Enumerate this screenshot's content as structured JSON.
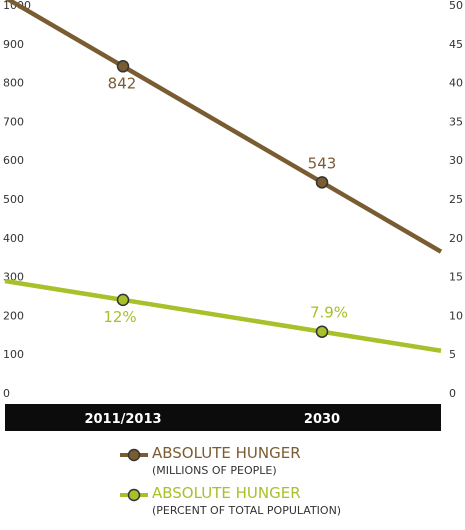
{
  "chart_data": {
    "type": "line",
    "categories": [
      "2011/2013",
      "2030"
    ],
    "y_left": {
      "ylim": [
        0,
        1000
      ],
      "ticks": [
        "0",
        "100",
        "200",
        "300",
        "400",
        "500",
        "600",
        "700",
        "800",
        "900",
        "1000"
      ]
    },
    "y_right": {
      "ylim": [
        0,
        50
      ],
      "ticks": [
        "0",
        "5",
        "10",
        "15",
        "20",
        "25",
        "30",
        "35",
        "40",
        "45",
        "50"
      ]
    },
    "series": [
      {
        "name": "ABSOLUTE HUNGER",
        "subtitle": "(MILLIONS OF PEOPLE)",
        "axis": "left",
        "color": "#7a5c33",
        "points": [
          {
            "x": "2011/2013",
            "y": 842,
            "label": "842"
          },
          {
            "x": "2030",
            "y": 543,
            "label": "543"
          }
        ]
      },
      {
        "name": "ABSOLUTE HUNGER",
        "subtitle": "(PERCENT OF TOTAL POPULATION)",
        "axis": "right",
        "color": "#a8c02a",
        "points": [
          {
            "x": "2011/2013",
            "y": 12,
            "label": "12%"
          },
          {
            "x": "2030",
            "y": 7.9,
            "label": "7.9%"
          }
        ]
      }
    ],
    "grid": false,
    "legend_position": "bottom"
  }
}
